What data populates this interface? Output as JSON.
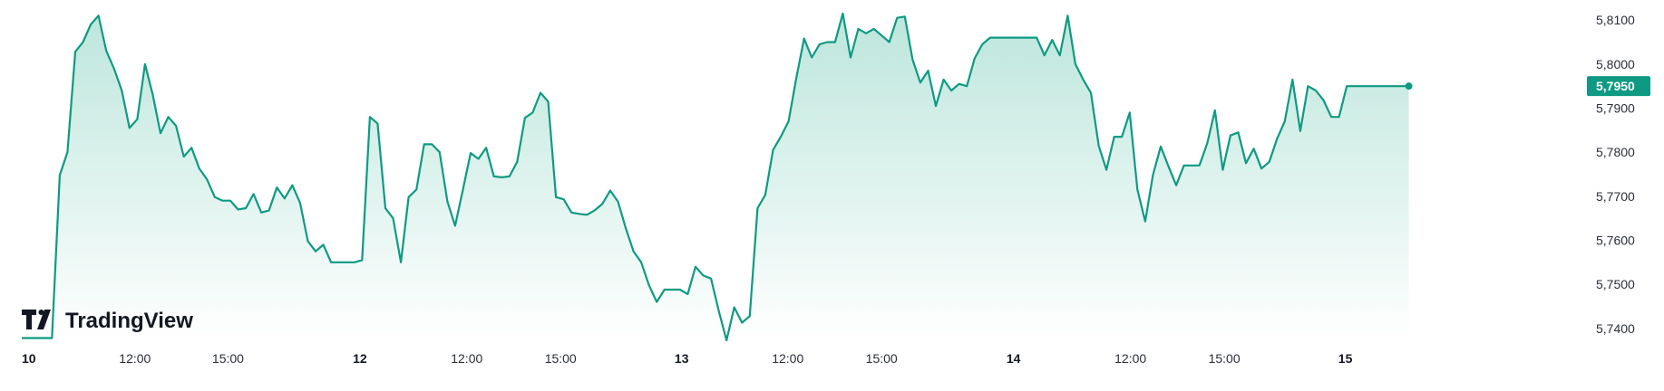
{
  "brand": {
    "logo_text": "TradingView"
  },
  "colors": {
    "line": "#0e9a82",
    "fill_top": "#b5e3d8",
    "fill_bottom": "#ffffff",
    "label_bg": "#0e9a82"
  },
  "chart_data": {
    "type": "area",
    "title": "",
    "xlabel": "",
    "ylabel": "",
    "ylim": [
      5.7375,
      5.8125
    ],
    "y_ticks": [
      "5,8100",
      "5,8000",
      "5,7900",
      "5,7800",
      "5,7700",
      "5,7600",
      "5,7500",
      "5,7400"
    ],
    "x_ticks": [
      {
        "label": "10",
        "major": true,
        "x": 0
      },
      {
        "label": "12:00",
        "major": false,
        "x": 14.6
      },
      {
        "label": "15:00",
        "major": false,
        "x": 26.6
      },
      {
        "label": "12",
        "major": true,
        "x": 42.7
      },
      {
        "label": "12:00",
        "major": false,
        "x": 57.4
      },
      {
        "label": "15:00",
        "major": false,
        "x": 69.5
      },
      {
        "label": "13",
        "major": true,
        "x": 84.2
      },
      {
        "label": "12:00",
        "major": false,
        "x": 98.8
      },
      {
        "label": "15:00",
        "major": false,
        "x": 110.9
      },
      {
        "label": "14",
        "major": true,
        "x": 127.0
      },
      {
        "label": "12:00",
        "major": false,
        "x": 143.0
      },
      {
        "label": "15:00",
        "major": false,
        "x": 155.1
      },
      {
        "label": "15",
        "major": true,
        "x": 169.8
      }
    ],
    "last_value_label": "5,7950",
    "series": [
      {
        "values": [
          [
            0,
            5.7378
          ],
          [
            3.9,
            5.7378
          ],
          [
            4.9,
            5.7748
          ],
          [
            5.9,
            5.78
          ],
          [
            6.9,
            5.8028
          ],
          [
            7.9,
            5.805
          ],
          [
            8.9,
            5.809
          ],
          [
            9.9,
            5.811
          ],
          [
            10.9,
            5.803
          ],
          [
            11.9,
            5.799
          ],
          [
            12.9,
            5.794
          ],
          [
            13.9,
            5.7855
          ],
          [
            14.9,
            5.7875
          ],
          [
            15.9,
            5.8
          ],
          [
            16.9,
            5.793
          ],
          [
            17.9,
            5.7843
          ],
          [
            18.9,
            5.788
          ],
          [
            19.9,
            5.786
          ],
          [
            20.9,
            5.779
          ],
          [
            21.9,
            5.781
          ],
          [
            22.9,
            5.7763
          ],
          [
            23.9,
            5.7738
          ],
          [
            24.9,
            5.7698
          ],
          [
            25.9,
            5.769
          ],
          [
            26.9,
            5.769
          ],
          [
            27.9,
            5.767
          ],
          [
            28.9,
            5.7673
          ],
          [
            29.9,
            5.7705
          ],
          [
            30.9,
            5.7663
          ],
          [
            31.9,
            5.7668
          ],
          [
            32.9,
            5.772
          ],
          [
            33.9,
            5.7695
          ],
          [
            34.9,
            5.7725
          ],
          [
            35.9,
            5.7685
          ],
          [
            36.9,
            5.7598
          ],
          [
            37.9,
            5.7575
          ],
          [
            38.9,
            5.759
          ],
          [
            39.9,
            5.755
          ],
          [
            40.9,
            5.755
          ],
          [
            41.9,
            5.755
          ],
          [
            42.9,
            5.755
          ],
          [
            43.9,
            5.7555
          ],
          [
            44.9,
            5.788
          ],
          [
            45.9,
            5.7865
          ],
          [
            46.9,
            5.7673
          ],
          [
            47.9,
            5.765
          ],
          [
            48.9,
            5.755
          ],
          [
            49.9,
            5.7698
          ],
          [
            50.9,
            5.7715
          ],
          [
            51.9,
            5.7818
          ],
          [
            52.9,
            5.7818
          ],
          [
            53.9,
            5.78
          ],
          [
            54.9,
            5.7688
          ],
          [
            55.9,
            5.7633
          ],
          [
            56.9,
            5.7715
          ],
          [
            57.9,
            5.7798
          ],
          [
            58.9,
            5.7785
          ],
          [
            59.9,
            5.781
          ],
          [
            60.9,
            5.7745
          ],
          [
            61.9,
            5.7743
          ],
          [
            62.9,
            5.7745
          ],
          [
            63.9,
            5.7778
          ],
          [
            64.9,
            5.7878
          ],
          [
            65.9,
            5.789
          ],
          [
            66.9,
            5.7935
          ],
          [
            67.9,
            5.7915
          ],
          [
            68.9,
            5.7698
          ],
          [
            69.9,
            5.7693
          ],
          [
            70.9,
            5.7663
          ],
          [
            71.9,
            5.766
          ],
          [
            72.9,
            5.7658
          ],
          [
            73.9,
            5.7668
          ],
          [
            74.9,
            5.7683
          ],
          [
            75.9,
            5.7713
          ],
          [
            76.9,
            5.7688
          ],
          [
            77.9,
            5.7628
          ],
          [
            78.9,
            5.7575
          ],
          [
            79.9,
            5.755
          ],
          [
            80.9,
            5.7498
          ],
          [
            81.9,
            5.746
          ],
          [
            82.9,
            5.7488
          ],
          [
            83.9,
            5.7488
          ],
          [
            84.9,
            5.7488
          ],
          [
            85.9,
            5.7478
          ],
          [
            86.9,
            5.754
          ],
          [
            87.9,
            5.752
          ],
          [
            88.9,
            5.7513
          ],
          [
            89.9,
            5.744
          ],
          [
            90.9,
            5.7373
          ],
          [
            91.9,
            5.7448
          ],
          [
            92.9,
            5.7413
          ],
          [
            93.9,
            5.7428
          ],
          [
            94.9,
            5.7673
          ],
          [
            95.9,
            5.7703
          ],
          [
            96.9,
            5.7805
          ],
          [
            97.9,
            5.7835
          ],
          [
            98.9,
            5.787
          ],
          [
            99.9,
            5.7968
          ],
          [
            100.9,
            5.8058
          ],
          [
            101.9,
            5.8015
          ],
          [
            102.9,
            5.8045
          ],
          [
            103.9,
            5.805
          ],
          [
            104.9,
            5.805
          ],
          [
            105.9,
            5.8115
          ],
          [
            106.9,
            5.8015
          ],
          [
            107.9,
            5.808
          ],
          [
            108.9,
            5.807
          ],
          [
            109.9,
            5.808
          ],
          [
            110.9,
            5.8065
          ],
          [
            111.9,
            5.805
          ],
          [
            112.9,
            5.8105
          ],
          [
            113.9,
            5.8108
          ],
          [
            114.9,
            5.801
          ],
          [
            115.9,
            5.7958
          ],
          [
            116.9,
            5.7985
          ],
          [
            117.9,
            5.7905
          ],
          [
            118.9,
            5.7965
          ],
          [
            119.9,
            5.794
          ],
          [
            120.9,
            5.7955
          ],
          [
            121.9,
            5.795
          ],
          [
            122.9,
            5.8013
          ],
          [
            123.9,
            5.8045
          ],
          [
            124.9,
            5.806
          ],
          [
            125.9,
            5.806
          ],
          [
            126.9,
            5.806
          ],
          [
            127.9,
            5.806
          ],
          [
            128.9,
            5.806
          ],
          [
            129.9,
            5.806
          ],
          [
            130.9,
            5.806
          ],
          [
            131.9,
            5.802
          ],
          [
            132.9,
            5.8055
          ],
          [
            133.9,
            5.802
          ],
          [
            134.9,
            5.811
          ],
          [
            135.9,
            5.8
          ],
          [
            136.9,
            5.7965
          ],
          [
            137.9,
            5.7935
          ],
          [
            138.9,
            5.7815
          ],
          [
            139.9,
            5.776
          ],
          [
            140.9,
            5.7835
          ],
          [
            141.9,
            5.7835
          ],
          [
            142.9,
            5.789
          ],
          [
            143.9,
            5.7715
          ],
          [
            144.9,
            5.7643
          ],
          [
            145.9,
            5.7748
          ],
          [
            146.9,
            5.7813
          ],
          [
            147.9,
            5.7768
          ],
          [
            148.9,
            5.7725
          ],
          [
            149.9,
            5.777
          ],
          [
            150.9,
            5.777
          ],
          [
            151.9,
            5.777
          ],
          [
            152.9,
            5.782
          ],
          [
            153.9,
            5.7895
          ],
          [
            154.9,
            5.776
          ],
          [
            155.9,
            5.7838
          ],
          [
            156.9,
            5.7845
          ],
          [
            157.9,
            5.7775
          ],
          [
            158.9,
            5.7808
          ],
          [
            159.9,
            5.7763
          ],
          [
            160.9,
            5.7778
          ],
          [
            161.9,
            5.783
          ],
          [
            162.9,
            5.787
          ],
          [
            163.9,
            5.7965
          ],
          [
            164.9,
            5.7848
          ],
          [
            165.9,
            5.795
          ],
          [
            166.9,
            5.794
          ],
          [
            167.9,
            5.7918
          ],
          [
            168.9,
            5.788
          ],
          [
            169.9,
            5.788
          ],
          [
            170.9,
            5.795
          ],
          [
            172.9,
            5.795
          ],
          [
            174.9,
            5.795
          ],
          [
            176.9,
            5.795
          ],
          [
            178.9,
            5.795
          ]
        ]
      }
    ]
  }
}
